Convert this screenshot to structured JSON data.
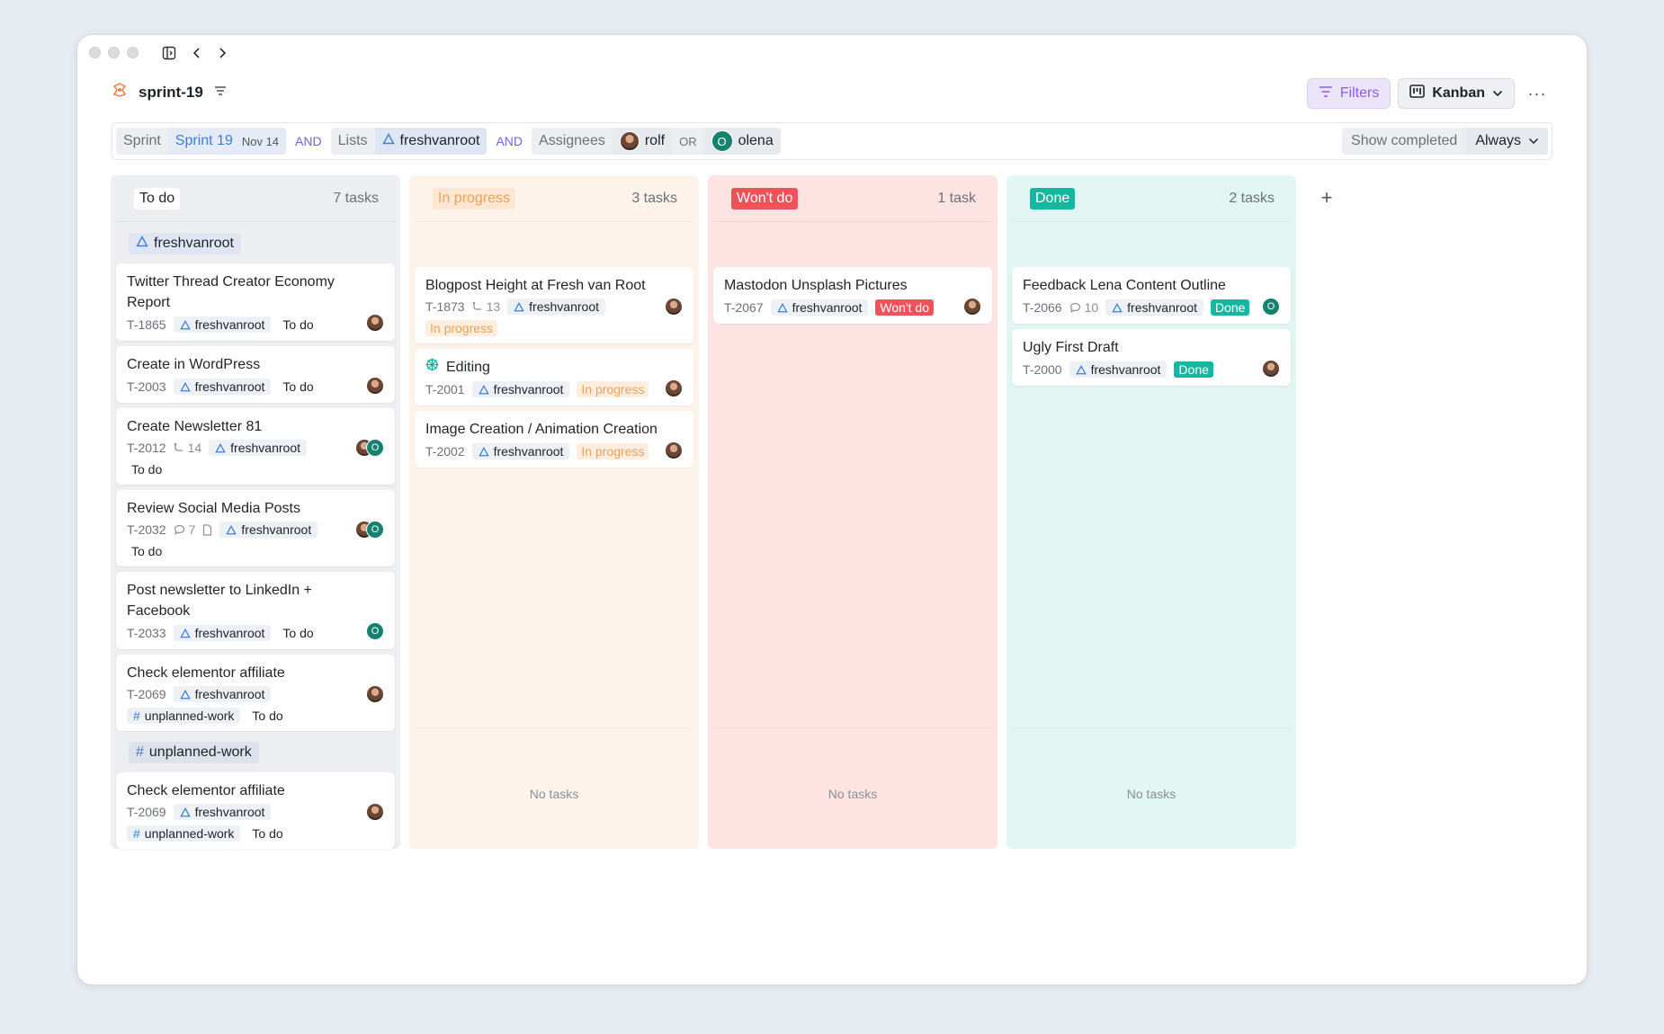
{
  "window": {
    "title": "sprint-19",
    "filters_label": "Filters",
    "view_label": "Kanban",
    "more_label": "···"
  },
  "filterbar": {
    "sprint_label": "Sprint",
    "sprint_value": "Sprint 19",
    "sprint_date": "Nov 14",
    "and1": "AND",
    "lists_label": "Lists",
    "lists_value": "freshvanroot",
    "and2": "AND",
    "assignees_label": "Assignees",
    "assignee1": "rolf",
    "or": "OR",
    "assignee2_initial": "O",
    "assignee2": "olena",
    "show_completed_label": "Show completed",
    "show_completed_value": "Always"
  },
  "columns": {
    "todo": {
      "label": "To do",
      "count": "7 tasks",
      "group1": "freshvanroot",
      "group2": "unplanned-work",
      "cards": [
        {
          "title": "Twitter Thread Creator Economy Report",
          "id": "T-1865",
          "tag": "freshvanroot",
          "status": "To do"
        },
        {
          "title": "Create in WordPress",
          "id": "T-2003",
          "tag": "freshvanroot",
          "status": "To do"
        },
        {
          "title": "Create Newsletter 81",
          "id": "T-2012",
          "subtasks": "14",
          "tag": "freshvanroot",
          "status": "To do",
          "av_initial": "O"
        },
        {
          "title": "Review Social Media Posts",
          "id": "T-2032",
          "comments": "7",
          "tag": "freshvanroot",
          "status": "To do",
          "av_initial": "O"
        },
        {
          "title": "Post newsletter to LinkedIn + Facebook",
          "id": "T-2033",
          "tag": "freshvanroot",
          "status": "To do",
          "av_initial": "O"
        },
        {
          "title": "Check elementor affiliate",
          "id": "T-2069",
          "tag": "freshvanroot",
          "tag2": "unplanned-work",
          "status": "To do"
        },
        {
          "title": "Check elementor affiliate",
          "id": "T-2069",
          "tag": "freshvanroot",
          "tag2": "unplanned-work",
          "status": "To do"
        }
      ]
    },
    "progress": {
      "label": "In progress",
      "count": "3 tasks",
      "no_tasks": "No tasks",
      "cards": [
        {
          "title": "Blogpost Height at Fresh van Root",
          "id": "T-1873",
          "subtasks": "13",
          "tag": "freshvanroot",
          "status": "In progress"
        },
        {
          "title": "Editing",
          "id": "T-2001",
          "tag": "freshvanroot",
          "status": "In progress"
        },
        {
          "title": "Image Creation / Animation Creation",
          "id": "T-2002",
          "tag": "freshvanroot",
          "status": "In progress"
        }
      ]
    },
    "wont": {
      "label": "Won't do",
      "count": "1 task",
      "no_tasks": "No tasks",
      "cards": [
        {
          "title": "Mastodon Unsplash Pictures",
          "id": "T-2067",
          "tag": "freshvanroot",
          "status": "Won't do"
        }
      ]
    },
    "done": {
      "label": "Done",
      "count": "2 tasks",
      "no_tasks": "No tasks",
      "cards": [
        {
          "title": "Feedback Lena Content Outline",
          "id": "T-2066",
          "comments": "10",
          "tag": "freshvanroot",
          "status": "Done",
          "av_initial": "O"
        },
        {
          "title": "Ugly First Draft",
          "id": "T-2000",
          "tag": "freshvanroot",
          "status": "Done"
        }
      ]
    }
  },
  "add_column_label": "+",
  "colors": {
    "accent_purple": "#8a5cf0",
    "link_blue": "#3d7de0",
    "in_progress": "#f0a057",
    "wont_do": "#f0525a",
    "done": "#16b6a0",
    "avatar_teal": "#14826f"
  },
  "icons": [
    "window-sidebar-icon",
    "chevron-left-icon",
    "chevron-right-icon",
    "sprint-logo-icon",
    "filter-icon",
    "kanban-icon",
    "chevron-down-icon",
    "triangle-list-icon",
    "hash-icon",
    "subtask-icon",
    "comment-icon",
    "document-icon",
    "editing-gear-icon",
    "plus-icon"
  ]
}
